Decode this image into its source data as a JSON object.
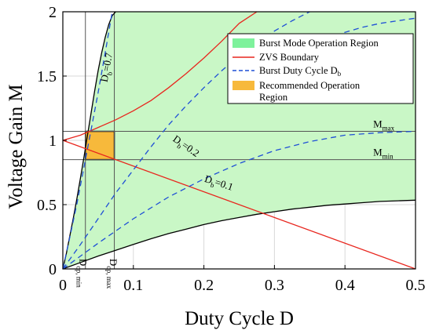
{
  "chart_data": {
    "type": "area",
    "xlabel": "Duty Cycle D",
    "ylabel": "Voltage Gain M",
    "xlim": [
      0,
      0.5
    ],
    "ylim": [
      0,
      2
    ],
    "x_ticks": [
      "0",
      "0.1",
      "0.2",
      "0.3",
      "0.4",
      "0.5"
    ],
    "y_ticks": [
      "0",
      "0.5",
      "1",
      "1.5",
      "2"
    ],
    "grid": true,
    "legend_position": "top-right",
    "colors": {
      "burst_region": "#c9f7c6",
      "legend_burst": "#7ef29c",
      "zvs": "#e8261e",
      "burst_duty": "#1f4fd6",
      "recommended": "#f7b93b",
      "boundary": "#000000",
      "grid": "#d8d8d8"
    },
    "legend": [
      {
        "label": "Burst Mode Operation Region",
        "type": "patch"
      },
      {
        "label": "ZVS Boundary",
        "type": "line"
      },
      {
        "label": "Burst Duty Cycle D",
        "sub": "b",
        "type": "dashed"
      },
      {
        "label": "Recommended Operation",
        "label2": "Region",
        "type": "patch"
      }
    ],
    "series": [
      {
        "name": "Burst Mode Operation Region upper boundary",
        "x": [
          0,
          0.005,
          0.01,
          0.015,
          0.02,
          0.025,
          0.03,
          0.035,
          0.04,
          0.045,
          0.05,
          0.055,
          0.06,
          0.065,
          0.07,
          0.075
        ],
        "y": [
          0,
          0.12,
          0.26,
          0.4,
          0.55,
          0.71,
          0.87,
          1.04,
          1.21,
          1.38,
          1.54,
          1.68,
          1.8,
          1.9,
          1.97,
          2.0
        ]
      },
      {
        "name": "Burst Mode Operation Region lower boundary",
        "x": [
          0,
          0.025,
          0.05,
          0.075,
          0.1,
          0.125,
          0.15,
          0.175,
          0.2,
          0.225,
          0.25,
          0.275,
          0.3,
          0.325,
          0.35,
          0.375,
          0.4,
          0.425,
          0.45,
          0.475,
          0.5
        ],
        "y": [
          0,
          0.05,
          0.1,
          0.145,
          0.19,
          0.235,
          0.275,
          0.31,
          0.345,
          0.375,
          0.4,
          0.425,
          0.445,
          0.465,
          0.48,
          0.495,
          0.505,
          0.515,
          0.525,
          0.53,
          0.535
        ]
      },
      {
        "name": "ZVS Boundary (decreasing)",
        "x": [
          0,
          0.5
        ],
        "y": [
          1,
          0
        ]
      },
      {
        "name": "ZVS Boundary (increasing)",
        "x": [
          0,
          0.025,
          0.05,
          0.075,
          0.1,
          0.125,
          0.15,
          0.175,
          0.2,
          0.225,
          0.25,
          0.275
        ],
        "y": [
          1,
          1.04,
          1.1,
          1.16,
          1.23,
          1.31,
          1.41,
          1.52,
          1.64,
          1.77,
          1.91,
          2.0
        ]
      },
      {
        "name": "Db=0.7",
        "x": [
          0,
          0.01,
          0.02,
          0.03,
          0.04,
          0.05,
          0.06,
          0.07
        ],
        "y": [
          0,
          0.25,
          0.51,
          0.79,
          1.08,
          1.37,
          1.68,
          2.0
        ]
      },
      {
        "name": "Db=0.2",
        "x": [
          0,
          0.025,
          0.05,
          0.075,
          0.1,
          0.125,
          0.15,
          0.175,
          0.2,
          0.225,
          0.25,
          0.275,
          0.3,
          0.325,
          0.35
        ],
        "y": [
          0,
          0.19,
          0.39,
          0.59,
          0.77,
          0.95,
          1.12,
          1.27,
          1.41,
          1.54,
          1.66,
          1.76,
          1.85,
          1.93,
          2.0
        ]
      },
      {
        "name": "Db=0.1",
        "x": [
          0,
          0.05,
          0.1,
          0.15,
          0.2,
          0.25,
          0.3,
          0.35,
          0.4,
          0.45,
          0.5
        ],
        "y": [
          0,
          0.2,
          0.39,
          0.56,
          0.7,
          0.82,
          0.92,
          0.99,
          1.04,
          1.06,
          1.07
        ]
      },
      {
        "name": "Db high (upper dashed)",
        "x": [
          0.3,
          0.325,
          0.35,
          0.375,
          0.4,
          0.425,
          0.45,
          0.475,
          0.5
        ],
        "y": [
          1.62,
          1.68,
          1.74,
          1.79,
          1.84,
          1.88,
          1.91,
          1.93,
          1.95
        ]
      }
    ],
    "reference_lines": {
      "M_max": 1.07,
      "M_min": 0.85,
      "D_op_min": 0.032,
      "D_op_max": 0.073
    },
    "recommended_region": {
      "x": [
        0.032,
        0.073
      ],
      "y": [
        0.85,
        1.07
      ]
    },
    "annotations": [
      {
        "text": "D",
        "sub": "b",
        "rest": "=0.7",
        "x": 0.063,
        "y": 1.45,
        "rotate": 80
      },
      {
        "text": "D",
        "sub": "b",
        "rest": "=0.2",
        "x": 0.155,
        "y": 1.0,
        "rotate": -35
      },
      {
        "text": "D",
        "sub": "b",
        "rest": "=0.1",
        "x": 0.2,
        "y": 0.68,
        "rotate": -18
      },
      {
        "text": "M",
        "sub": "max",
        "rest": "",
        "x": 0.44,
        "y": 1.1,
        "rotate": 0
      },
      {
        "text": "M",
        "sub": "min",
        "rest": "",
        "x": 0.44,
        "y": 0.88,
        "rotate": 0
      },
      {
        "text": "D",
        "sub": "op, min",
        "rest": "",
        "x": 0.024,
        "y": 0.08,
        "rotate": -90
      },
      {
        "text": "D",
        "sub": "op, max",
        "rest": "",
        "x": 0.067,
        "y": 0.08,
        "rotate": -90
      }
    ]
  }
}
